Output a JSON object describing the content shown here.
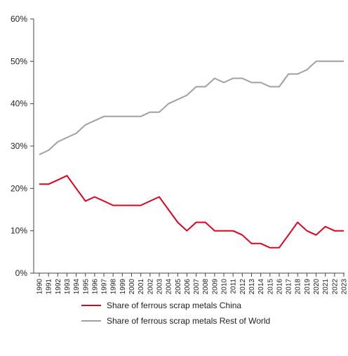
{
  "chart_data": {
    "type": "line",
    "title": "",
    "xlabel": "",
    "ylabel": "",
    "x": [
      1990,
      1991,
      1992,
      1993,
      1994,
      1995,
      1996,
      1997,
      1998,
      1999,
      2000,
      2001,
      2002,
      2003,
      2004,
      2005,
      2006,
      2007,
      2008,
      2009,
      2010,
      2011,
      2012,
      2013,
      2014,
      2015,
      2016,
      2017,
      2018,
      2019,
      2020,
      2021,
      2022,
      2023
    ],
    "ylim": [
      0,
      60
    ],
    "yticks": [
      0,
      10,
      20,
      30,
      40,
      50,
      60
    ],
    "ytick_labels": [
      "0%",
      "10%",
      "20%",
      "30%",
      "40%",
      "50%",
      "60%"
    ],
    "grid": false,
    "legend_position": "bottom",
    "series": [
      {
        "name": "Share of ferrous scrap metals China",
        "color": "#e2001a",
        "values": [
          21,
          21,
          22,
          23,
          20,
          17,
          18,
          17,
          16,
          16,
          16,
          16,
          17,
          18,
          15,
          12,
          10,
          12,
          12,
          10,
          10,
          10,
          9,
          7,
          7,
          6,
          6,
          9,
          12,
          10,
          9,
          11,
          10,
          10
        ]
      },
      {
        "name": "Share of ferrous scrap metals Rest of World",
        "color": "#a0a0a0",
        "values": [
          28,
          29,
          31,
          32,
          33,
          35,
          36,
          37,
          37,
          37,
          37,
          37,
          38,
          38,
          40,
          41,
          42,
          44,
          44,
          46,
          45,
          46,
          46,
          45,
          45,
          44,
          44,
          47,
          47,
          48,
          50,
          50,
          50,
          50
        ]
      }
    ]
  }
}
